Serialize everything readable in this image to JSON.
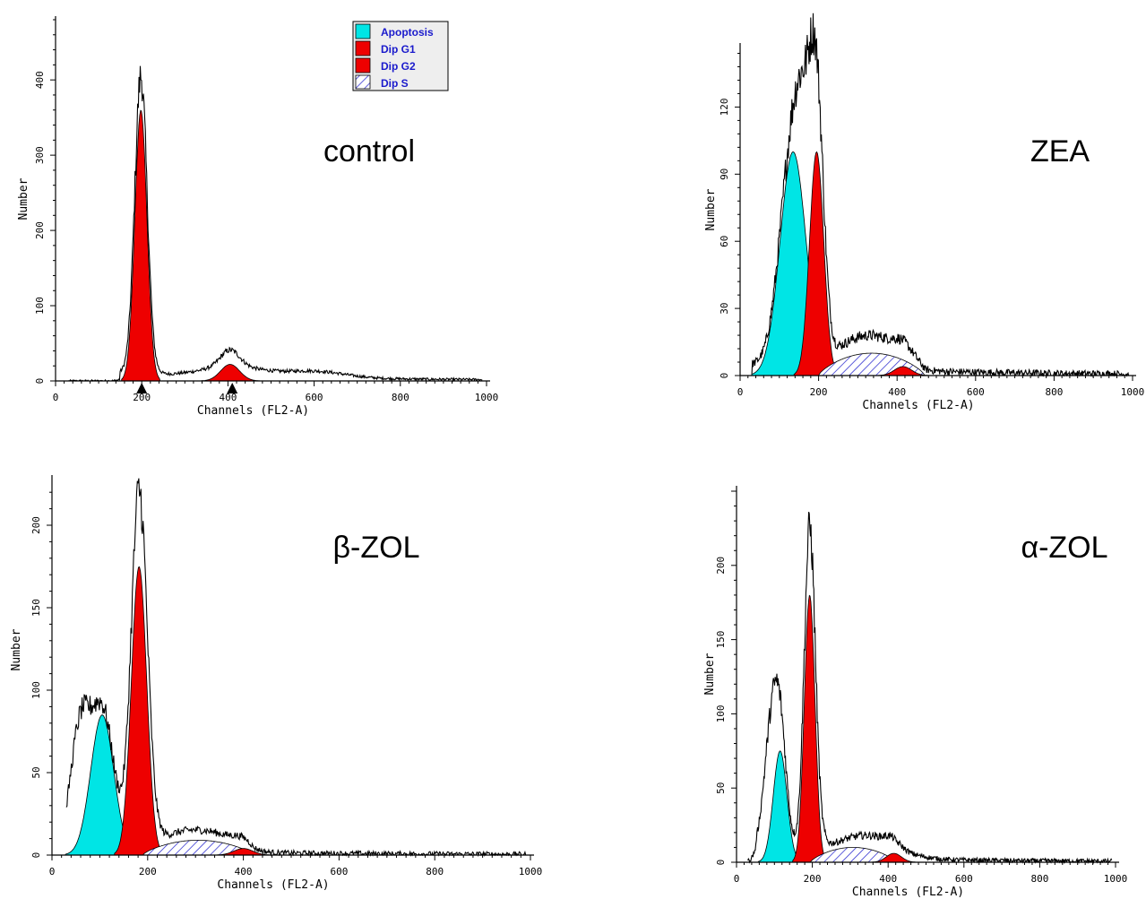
{
  "colors": {
    "apoptosis": "#00e5e5",
    "dip_g1": "#ee0000",
    "dip_g2": "#ee0000",
    "dip_s_hatch": "#1a1acc",
    "histogram": "#000000"
  },
  "legend": {
    "items": [
      {
        "label": "Apoptosis",
        "swatch": "cyan"
      },
      {
        "label": "Dip G1",
        "swatch": "red"
      },
      {
        "label": "Dip G2",
        "swatch": "red"
      },
      {
        "label": "Dip S",
        "swatch": "hatch"
      }
    ]
  },
  "chart_data": [
    {
      "type": "area",
      "title": "control",
      "xlabel": "Channels (FL2-A)",
      "ylabel": "Number",
      "xlim": [
        0,
        1000
      ],
      "ylim": [
        0,
        480
      ],
      "xticks": [
        0,
        200,
        400,
        600,
        800,
        1000
      ],
      "yticks": [
        0,
        100,
        200,
        300,
        400
      ],
      "markers": [
        200,
        410
      ],
      "components": [
        {
          "name": "Dip G1",
          "kind": "gauss",
          "center": 198,
          "sigma": 14,
          "amplitude": 360
        },
        {
          "name": "Dip G2",
          "kind": "gauss",
          "center": 405,
          "sigma": 22,
          "amplitude": 22
        }
      ],
      "baseline": 8,
      "histogram_peaks": [
        {
          "x": 198,
          "y": 400
        },
        {
          "x": 410,
          "y": 36
        },
        {
          "x": 600,
          "y": 10
        }
      ]
    },
    {
      "type": "area",
      "title": "ZEA",
      "xlabel": "Channels (FL2-A)",
      "ylabel": "Number",
      "xlim": [
        0,
        1000
      ],
      "ylim": [
        0,
        145
      ],
      "xticks": [
        0,
        200,
        400,
        600,
        800,
        1000
      ],
      "yticks": [
        0,
        30,
        60,
        90,
        120
      ],
      "components": [
        {
          "name": "Apoptosis",
          "kind": "gauss",
          "center": 135,
          "sigma": 33,
          "amplitude": 100
        },
        {
          "name": "Dip G1",
          "kind": "gauss",
          "center": 195,
          "sigma": 18,
          "amplitude": 100
        },
        {
          "name": "Dip S",
          "kind": "hatch",
          "from": 200,
          "to": 470,
          "amplitude": 10
        },
        {
          "name": "Dip G2",
          "kind": "gauss",
          "center": 415,
          "sigma": 22,
          "amplitude": 4
        }
      ],
      "baseline": 3,
      "histogram_peaks": [
        {
          "x": 160,
          "y": 130
        },
        {
          "x": 185,
          "y": 135
        },
        {
          "x": 330,
          "y": 16
        }
      ]
    },
    {
      "type": "area",
      "title": "β-ZOL",
      "xlabel": "Channels (FL2-A)",
      "ylabel": "Number",
      "xlim": [
        0,
        1000
      ],
      "ylim": [
        0,
        225
      ],
      "xticks": [
        0,
        200,
        400,
        600,
        800,
        1000
      ],
      "yticks": [
        0,
        50,
        100,
        150,
        200
      ],
      "components": [
        {
          "name": "Apoptosis",
          "kind": "gauss",
          "center": 105,
          "sigma": 24,
          "amplitude": 85
        },
        {
          "name": "Dip G1",
          "kind": "gauss",
          "center": 182,
          "sigma": 16,
          "amplitude": 175
        },
        {
          "name": "Dip S",
          "kind": "hatch",
          "from": 190,
          "to": 420,
          "amplitude": 9
        },
        {
          "name": "Dip G2",
          "kind": "gauss",
          "center": 400,
          "sigma": 20,
          "amplitude": 4
        }
      ],
      "baseline": 2,
      "histogram_peaks": [
        {
          "x": 58,
          "y": 90
        },
        {
          "x": 185,
          "y": 220
        },
        {
          "x": 300,
          "y": 14
        }
      ]
    },
    {
      "type": "area",
      "title": "α-ZOL",
      "xlabel": "Channels (FL2-A)",
      "ylabel": "Number",
      "xlim": [
        0,
        1000
      ],
      "ylim": [
        0,
        250
      ],
      "xticks": [
        0,
        200,
        400,
        600,
        800,
        1000
      ],
      "yticks": [
        0,
        50,
        100,
        150,
        200
      ],
      "components": [
        {
          "name": "Apoptosis",
          "kind": "gauss",
          "center": 115,
          "sigma": 18,
          "amplitude": 75
        },
        {
          "name": "Dip G1",
          "kind": "gauss",
          "center": 193,
          "sigma": 14,
          "amplitude": 180
        },
        {
          "name": "Dip S",
          "kind": "hatch",
          "from": 195,
          "to": 420,
          "amplitude": 10
        },
        {
          "name": "Dip G2",
          "kind": "gauss",
          "center": 415,
          "sigma": 20,
          "amplitude": 6
        }
      ],
      "baseline": 3,
      "histogram_peaks": [
        {
          "x": 90,
          "y": 108
        },
        {
          "x": 195,
          "y": 225
        },
        {
          "x": 380,
          "y": 16
        }
      ]
    }
  ]
}
